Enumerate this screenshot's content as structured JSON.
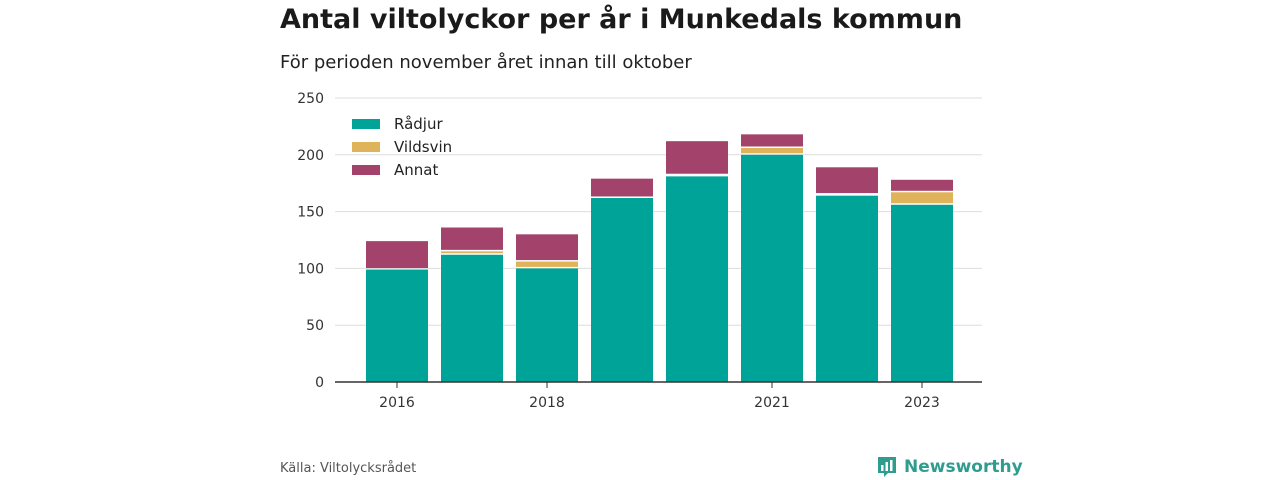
{
  "title": "Antal viltolyckor per år i Munkedals kommun",
  "subtitle": "För perioden november året innan till oktober",
  "source": "Källa: Viltolycksrådet",
  "brand": "Newsworthy",
  "colors": {
    "radjur": "#00a398",
    "vildsvin": "#dfb35a",
    "annat": "#a3426b",
    "grid": "#dddddd",
    "axis": "#333333"
  },
  "chart_data": {
    "type": "bar",
    "stacked": true,
    "categories": [
      "2016",
      "2017",
      "2018",
      "2019",
      "2020",
      "2021",
      "2022",
      "2023"
    ],
    "x_tick_labels": [
      "2016",
      "",
      "2018",
      "",
      "",
      "2021",
      "",
      "2023"
    ],
    "series": [
      {
        "name": "Rådjur",
        "color": "#00a398",
        "values": [
          99,
          112,
          100,
          162,
          181,
          200,
          164,
          156
        ]
      },
      {
        "name": "Vildsvin",
        "color": "#dfb35a",
        "values": [
          0,
          3,
          6,
          0,
          1,
          6,
          1,
          11
        ]
      },
      {
        "name": "Annat",
        "color": "#a3426b",
        "values": [
          25,
          21,
          24,
          17,
          30,
          12,
          24,
          11
        ]
      }
    ],
    "ylim": [
      0,
      250
    ],
    "yticks": [
      0,
      50,
      100,
      150,
      200,
      250
    ],
    "grid": true,
    "legend_position": "top-left"
  }
}
